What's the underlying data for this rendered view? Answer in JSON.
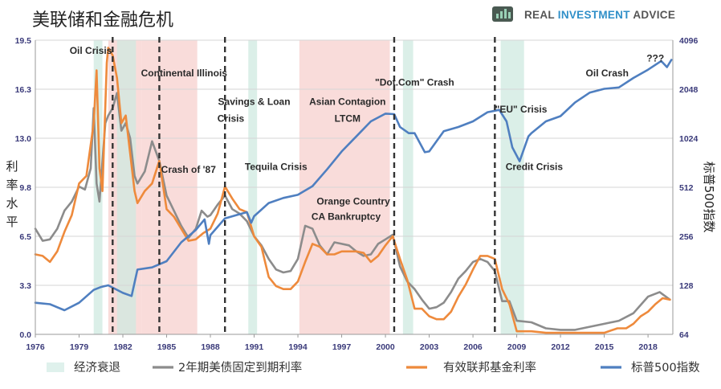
{
  "header": {
    "title": "美联储和金融危机",
    "brand_real": "REAL ",
    "brand_investment": "INVESTMENT ",
    "brand_advice": "ADVICE",
    "logo_icon": "bar-chart-icon",
    "brand_colors": {
      "real": "#555555",
      "investment": "#2f8fc8",
      "advice": "#555555"
    }
  },
  "chart_data": {
    "type": "line",
    "xlim": [
      1976,
      2019.7
    ],
    "x_ticks": [
      "1976",
      "1979",
      "1982",
      "1985",
      "1988",
      "1991",
      "1994",
      "1997",
      "2000",
      "2003",
      "2006",
      "2009",
      "2012",
      "2015",
      "2018"
    ],
    "x_tick_values": [
      1976,
      1979,
      1982,
      1985,
      1988,
      1991,
      1994,
      1997,
      2000,
      2003,
      2006,
      2009,
      2012,
      2015,
      2018
    ],
    "y_left": {
      "label": "利率水平",
      "label_chars": [
        "利",
        "率",
        "水",
        "平"
      ],
      "ylim": [
        0,
        19.5
      ],
      "ticks": [
        "0.0",
        "3.3",
        "6.5",
        "9.8",
        "13.0",
        "16.3",
        "19.5"
      ],
      "tick_values": [
        0,
        3.25,
        6.5,
        9.75,
        13.0,
        16.25,
        19.5
      ]
    },
    "y_right": {
      "label": "标普500指数",
      "label_chars": [
        "标",
        "普",
        "5",
        "0",
        "0",
        "指",
        "数"
      ],
      "scale": "log2",
      "ylim": [
        64,
        4096
      ],
      "ticks": [
        "64",
        "128",
        "256",
        "512",
        "1024",
        "2048",
        "4096"
      ],
      "tick_values": [
        64,
        128,
        256,
        512,
        1024,
        2048,
        4096
      ]
    },
    "recessions": [
      [
        1980.0,
        1980.6
      ],
      [
        1981.6,
        1982.9
      ],
      [
        1990.6,
        1991.2
      ],
      [
        2001.2,
        2001.9
      ],
      [
        2007.9,
        2009.5
      ]
    ],
    "crisis_shading": [
      [
        1981.0,
        1983.3
      ],
      [
        1983.3,
        1987.1
      ],
      [
        1994.1,
        2000.3
      ]
    ],
    "crisis_lines": [
      1981.3,
      1984.5,
      1989.0,
      2000.6,
      2007.5
    ],
    "series": [
      {
        "name": "2年期美债固定到期利率",
        "axis": "left",
        "color": "#8c8c8c",
        "x": [
          1976,
          1976.5,
          1977,
          1977.5,
          1978,
          1978.5,
          1979,
          1979.4,
          1979.8,
          1980.0,
          1980.2,
          1980.4,
          1980.6,
          1980.8,
          1981.0,
          1981.3,
          1981.6,
          1981.9,
          1982.2,
          1982.5,
          1982.8,
          1983.0,
          1983.5,
          1984.0,
          1984.5,
          1985.0,
          1985.5,
          1986.0,
          1986.5,
          1987.0,
          1987.4,
          1987.8,
          1988.0,
          1988.5,
          1989.0,
          1989.5,
          1990.0,
          1990.5,
          1991.0,
          1991.5,
          1992.0,
          1992.5,
          1993.0,
          1993.5,
          1994.0,
          1994.5,
          1995.0,
          1995.5,
          1996.0,
          1996.5,
          1997.0,
          1997.5,
          1998.0,
          1998.5,
          1999.0,
          1999.5,
          2000.0,
          2000.5,
          2001.0,
          2001.5,
          2002.0,
          2002.5,
          2003.0,
          2003.5,
          2004.0,
          2004.5,
          2005.0,
          2005.5,
          2006.0,
          2006.5,
          2007.0,
          2007.5,
          2008.0,
          2008.5,
          2009.0,
          2010.0,
          2011.0,
          2012.0,
          2013.0,
          2014.0,
          2015.0,
          2016.0,
          2017.0,
          2018.0,
          2018.8,
          2019.5
        ],
        "values": [
          7.0,
          6.2,
          6.3,
          7.0,
          8.2,
          8.8,
          9.8,
          9.6,
          11.0,
          15.0,
          10.0,
          8.8,
          11.5,
          14.0,
          14.5,
          15.0,
          16.0,
          13.5,
          14.0,
          13.0,
          10.5,
          10.0,
          10.8,
          12.8,
          11.5,
          9.2,
          8.2,
          7.2,
          6.4,
          7.0,
          8.2,
          7.8,
          7.9,
          8.6,
          9.2,
          8.3,
          8.0,
          7.5,
          6.5,
          5.9,
          5.0,
          4.3,
          4.1,
          4.2,
          5.0,
          7.2,
          7.0,
          5.9,
          5.3,
          6.1,
          6.0,
          5.9,
          5.5,
          5.2,
          5.3,
          6.0,
          6.3,
          6.6,
          4.5,
          3.5,
          3.0,
          2.3,
          1.7,
          1.8,
          2.1,
          2.8,
          3.7,
          4.2,
          4.8,
          5.0,
          4.8,
          4.2,
          2.2,
          2.2,
          0.9,
          0.8,
          0.4,
          0.3,
          0.3,
          0.5,
          0.7,
          0.9,
          1.4,
          2.5,
          2.8,
          2.3
        ]
      },
      {
        "name": "有效联邦基金利率",
        "axis": "left",
        "color": "#ee8a3c",
        "x": [
          1976,
          1976.5,
          1977,
          1977.5,
          1978,
          1978.5,
          1979,
          1979.5,
          1980.0,
          1980.2,
          1980.4,
          1980.6,
          1980.9,
          1981.0,
          1981.3,
          1981.6,
          1981.9,
          1982.2,
          1982.5,
          1982.8,
          1983.0,
          1983.5,
          1984.0,
          1984.5,
          1985.0,
          1985.5,
          1986.0,
          1986.5,
          1987.0,
          1987.5,
          1988.0,
          1988.5,
          1989.0,
          1989.5,
          1990.0,
          1990.5,
          1991.0,
          1991.5,
          1992.0,
          1992.5,
          1993.0,
          1993.5,
          1994.0,
          1994.5,
          1995.0,
          1995.5,
          1996.0,
          1996.5,
          1997.0,
          1997.5,
          1998.0,
          1998.5,
          1999.0,
          1999.5,
          2000.0,
          2000.5,
          2001.0,
          2001.5,
          2002.0,
          2002.5,
          2003.0,
          2003.5,
          2004.0,
          2004.5,
          2005.0,
          2005.5,
          2006.0,
          2006.5,
          2007.0,
          2007.5,
          2008.0,
          2008.5,
          2009.0,
          2010.0,
          2011.0,
          2012.0,
          2013.0,
          2014.0,
          2015.0,
          2015.9,
          2016.5,
          2017.0,
          2017.5,
          2018.0,
          2018.5,
          2019.0,
          2019.5
        ],
        "values": [
          5.3,
          5.2,
          4.8,
          5.5,
          6.8,
          7.9,
          10.0,
          10.5,
          14.0,
          17.5,
          11.0,
          9.5,
          18.0,
          19.0,
          18.5,
          17.0,
          14.0,
          14.5,
          12.0,
          9.5,
          8.7,
          9.5,
          10.0,
          11.5,
          8.3,
          7.8,
          7.0,
          6.2,
          6.3,
          6.7,
          7.0,
          8.0,
          9.8,
          9.0,
          8.3,
          8.1,
          6.5,
          5.8,
          3.8,
          3.2,
          3.0,
          3.0,
          3.5,
          4.8,
          6.0,
          5.8,
          5.3,
          5.3,
          5.5,
          5.5,
          5.5,
          5.4,
          4.8,
          5.2,
          5.9,
          6.5,
          5.0,
          3.6,
          1.7,
          1.7,
          1.2,
          1.0,
          1.0,
          1.5,
          2.5,
          3.3,
          4.3,
          5.2,
          5.2,
          5.0,
          3.0,
          2.0,
          0.2,
          0.2,
          0.1,
          0.1,
          0.1,
          0.1,
          0.1,
          0.4,
          0.4,
          0.7,
          1.2,
          1.5,
          2.0,
          2.4,
          2.3
        ]
      },
      {
        "name": "标普500指数",
        "axis": "right",
        "color": "#4f7fc0",
        "x": [
          1976,
          1977,
          1978,
          1979,
          1980,
          1980.5,
          1981,
          1982,
          1982.6,
          1983,
          1984,
          1985,
          1986,
          1987,
          1987.6,
          1987.9,
          1988,
          1989,
          1990,
          1990.5,
          1990.8,
          1991,
          1992,
          1993,
          1994,
          1995,
          1996,
          1997,
          1998,
          1999,
          2000.0,
          2000.6,
          2001.0,
          2001.6,
          2002.0,
          2002.7,
          2003.0,
          2004,
          2005,
          2006,
          2007,
          2007.8,
          2008.3,
          2008.7,
          2009.2,
          2009.8,
          2010,
          2011,
          2012,
          2013,
          2014,
          2015,
          2016,
          2017,
          2018,
          2018.9,
          2019.3,
          2019.6
        ],
        "values": [
          100,
          98,
          90,
          100,
          120,
          125,
          128,
          115,
          110,
          160,
          165,
          180,
          235,
          280,
          325,
          230,
          260,
          330,
          350,
          360,
          310,
          340,
          410,
          440,
          460,
          520,
          660,
          850,
          1050,
          1300,
          1450,
          1440,
          1200,
          1100,
          1100,
          840,
          850,
          1130,
          1200,
          1300,
          1480,
          1530,
          1300,
          900,
          740,
          1050,
          1100,
          1300,
          1400,
          1700,
          1950,
          2060,
          2100,
          2400,
          2700,
          3050,
          2800,
          3100
        ]
      }
    ],
    "annotations": [
      {
        "text": "Oil Crisis",
        "x": 1979.8,
        "y": 18.6
      },
      {
        "text": "Continental Illinois",
        "x": 1986.2,
        "y": 17.1
      },
      {
        "text": "Savings & Loan",
        "x": 1991.0,
        "y": 15.2
      },
      {
        "text": "Crisis",
        "x": 1989.4,
        "y": 14.1
      },
      {
        "text": "Asian Contagion",
        "x": 1997.4,
        "y": 15.2
      },
      {
        "text": "LTCM",
        "x": 1997.4,
        "y": 14.1
      },
      {
        "text": "\"Dot.Com\" Crash",
        "x": 2002.0,
        "y": 16.5
      },
      {
        "text": "\"EU\" Crisis",
        "x": 2009.3,
        "y": 14.7
      },
      {
        "text": "Oil Crash",
        "x": 2015.2,
        "y": 17.1
      },
      {
        "text": "???",
        "x": 2018.5,
        "y": 18.1
      },
      {
        "text": "Crash of '87",
        "x": 1986.5,
        "y": 10.7
      },
      {
        "text": "Tequila Crisis",
        "x": 1992.5,
        "y": 10.9
      },
      {
        "text": "Credit Crisis",
        "x": 2010.2,
        "y": 10.9
      },
      {
        "text": "Orange Country",
        "x": 1997.8,
        "y": 8.6
      },
      {
        "text": "CA Bankruptcy",
        "x": 1997.3,
        "y": 7.6
      }
    ]
  },
  "legend": [
    {
      "label": "经济衰退",
      "kind": "box",
      "color": "#dff1ec"
    },
    {
      "label": "2年期美债固定到期利率",
      "kind": "line",
      "color": "#8c8c8c"
    },
    {
      "label": "有效联邦基金利率",
      "kind": "line",
      "color": "#ee8a3c"
    },
    {
      "label": "标普500指数",
      "kind": "line",
      "color": "#4f7fc0"
    }
  ]
}
